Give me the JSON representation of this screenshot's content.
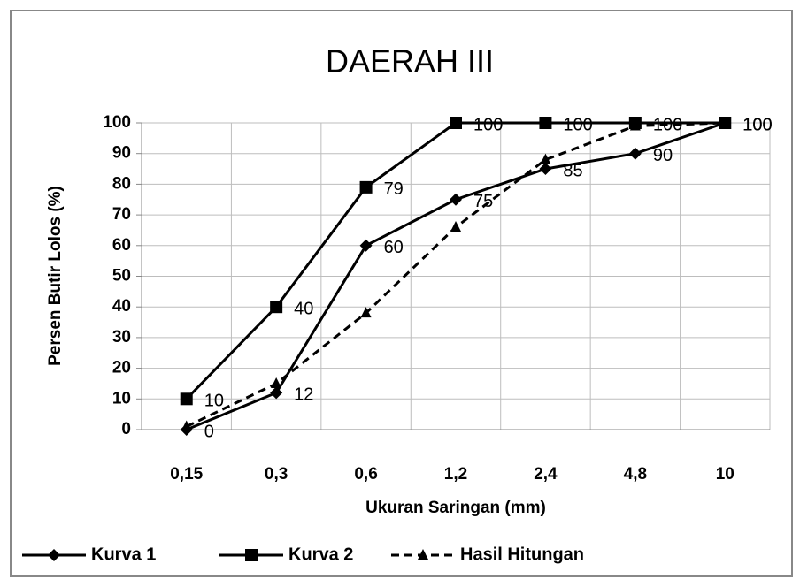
{
  "chart_data": {
    "type": "line",
    "title": "DAERAH III",
    "x_label": "Ukuran Saringan (mm)",
    "y_label": "Persen Butir Lolos (%)",
    "categories": [
      "0,15",
      "0,3",
      "0,6",
      "1,2",
      "2,4",
      "4,8",
      "10"
    ],
    "series": [
      {
        "name": "Kurva 1",
        "color": "#000000",
        "marker": "diamond",
        "dashed": false,
        "data_labels": true,
        "values": [
          0,
          12,
          60,
          75,
          85,
          90,
          100
        ]
      },
      {
        "name": "Kurva 2",
        "color": "#000000",
        "marker": "square",
        "dashed": false,
        "data_labels": true,
        "values": [
          10,
          40,
          79,
          100,
          100,
          100,
          100
        ]
      },
      {
        "name": "Hasil Hitungan",
        "color": "#000000",
        "marker": "triangle",
        "dashed": true,
        "data_labels": false,
        "values": [
          1,
          15,
          38,
          66,
          88,
          99,
          100
        ]
      }
    ],
    "ylim": [
      0,
      100
    ],
    "yticks": [
      0,
      10,
      20,
      30,
      40,
      50,
      60,
      70,
      80,
      90,
      100
    ],
    "grid": true,
    "legend": "bottom"
  }
}
